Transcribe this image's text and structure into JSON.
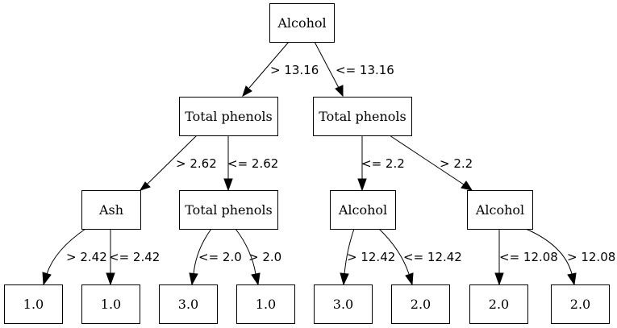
{
  "tree": {
    "nodes": [
      {
        "id": "n0",
        "label": "Alcohol"
      },
      {
        "id": "n1",
        "label": "Total phenols"
      },
      {
        "id": "n2",
        "label": "Total phenols"
      },
      {
        "id": "n3",
        "label": "Ash"
      },
      {
        "id": "n4",
        "label": "Total phenols"
      },
      {
        "id": "n5",
        "label": "Alcohol"
      },
      {
        "id": "n6",
        "label": "Alcohol"
      },
      {
        "id": "n7",
        "label": "1.0"
      },
      {
        "id": "n8",
        "label": "1.0"
      },
      {
        "id": "n9",
        "label": "3.0"
      },
      {
        "id": "n10",
        "label": "1.0"
      },
      {
        "id": "n11",
        "label": "3.0"
      },
      {
        "id": "n12",
        "label": "2.0"
      },
      {
        "id": "n13",
        "label": "2.0"
      },
      {
        "id": "n14",
        "label": "2.0"
      }
    ],
    "edges": [
      {
        "id": "e0",
        "from": "n0",
        "to": "n1",
        "label": "> 13.16"
      },
      {
        "id": "e1",
        "from": "n0",
        "to": "n2",
        "label": "<= 13.16"
      },
      {
        "id": "e2",
        "from": "n1",
        "to": "n3",
        "label": "> 2.62"
      },
      {
        "id": "e3",
        "from": "n1",
        "to": "n4",
        "label": "<= 2.62"
      },
      {
        "id": "e4",
        "from": "n2",
        "to": "n5",
        "label": "<= 2.2"
      },
      {
        "id": "e5",
        "from": "n2",
        "to": "n6",
        "label": "> 2.2"
      },
      {
        "id": "e6",
        "from": "n3",
        "to": "n7",
        "label": "> 2.42"
      },
      {
        "id": "e7",
        "from": "n3",
        "to": "n8",
        "label": "<= 2.42"
      },
      {
        "id": "e8",
        "from": "n4",
        "to": "n9",
        "label": "<= 2.0"
      },
      {
        "id": "e9",
        "from": "n4",
        "to": "n10",
        "label": "> 2.0"
      },
      {
        "id": "e10",
        "from": "n5",
        "to": "n11",
        "label": "> 12.42"
      },
      {
        "id": "e11",
        "from": "n5",
        "to": "n12",
        "label": "<= 12.42"
      },
      {
        "id": "e12",
        "from": "n6",
        "to": "n13",
        "label": "<= 12.08"
      },
      {
        "id": "e13",
        "from": "n6",
        "to": "n14",
        "label": "> 12.08"
      }
    ]
  }
}
